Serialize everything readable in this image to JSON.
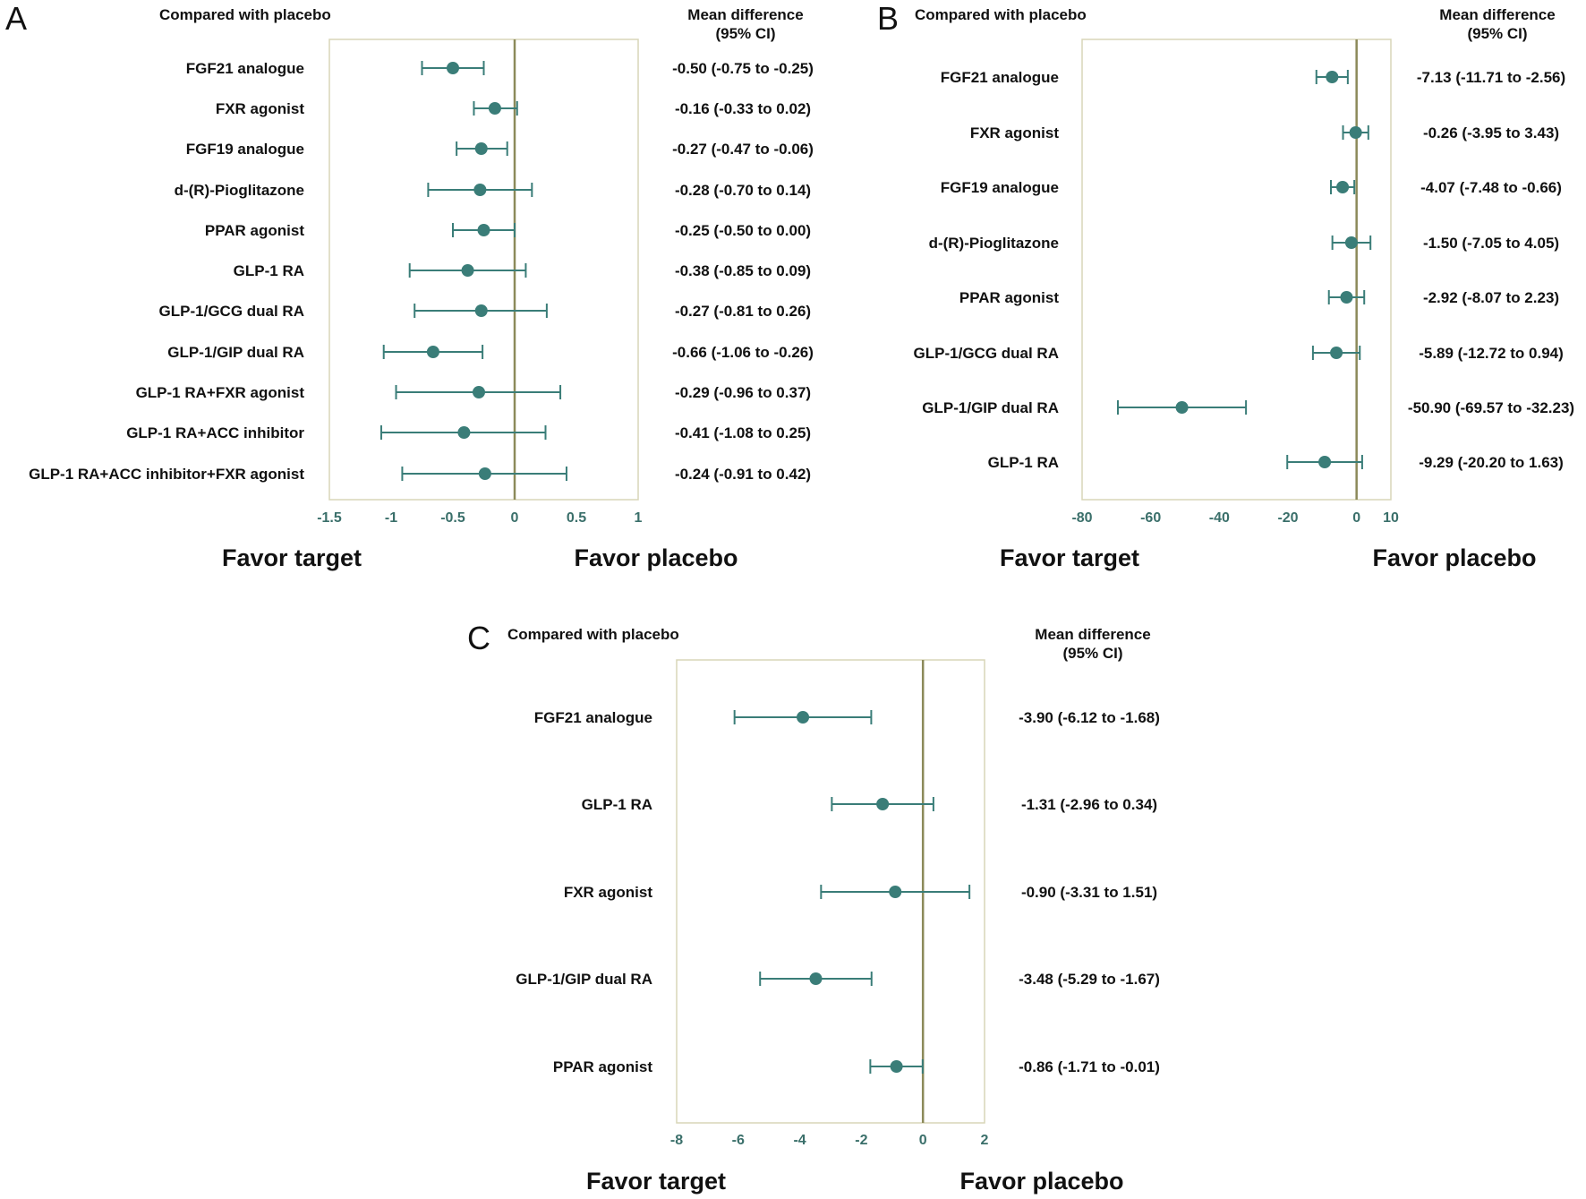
{
  "chart_data": [
    {
      "type": "forest",
      "panel_label": "A",
      "column_left_header": "Compared with placebo",
      "column_right_header_line1": "Mean difference",
      "column_right_header_line2": "(95% CI)",
      "favor_left": "Favor target",
      "favor_right": "Favor placebo",
      "xlim": [
        -1.5,
        1
      ],
      "xticks": [
        "-1.5",
        "-1",
        "-0.5",
        "0",
        "0.5",
        "1"
      ],
      "xtick_values": [
        -1.5,
        -1,
        -0.5,
        0,
        0.5,
        1
      ],
      "reference_line": 0,
      "rows": [
        {
          "label": "FGF21 analogue",
          "mean": -0.5,
          "lower": -0.75,
          "upper": -0.25,
          "text": "-0.50 (-0.75 to -0.25)"
        },
        {
          "label": "FXR agonist",
          "mean": -0.16,
          "lower": -0.33,
          "upper": 0.02,
          "text": "-0.16 (-0.33 to 0.02)"
        },
        {
          "label": "FGF19 analogue",
          "mean": -0.27,
          "lower": -0.47,
          "upper": -0.06,
          "text": "-0.27 (-0.47 to -0.06)"
        },
        {
          "label": "d-(R)-Pioglitazone",
          "mean": -0.28,
          "lower": -0.7,
          "upper": 0.14,
          "text": "-0.28 (-0.70 to 0.14)"
        },
        {
          "label": "PPAR agonist",
          "mean": -0.25,
          "lower": -0.5,
          "upper": 0.0,
          "text": "-0.25 (-0.50 to 0.00)"
        },
        {
          "label": "GLP-1 RA",
          "mean": -0.38,
          "lower": -0.85,
          "upper": 0.09,
          "text": "-0.38 (-0.85 to 0.09)"
        },
        {
          "label": "GLP-1/GCG dual RA",
          "mean": -0.27,
          "lower": -0.81,
          "upper": 0.26,
          "text": "-0.27 (-0.81 to 0.26)"
        },
        {
          "label": "GLP-1/GIP dual RA",
          "mean": -0.66,
          "lower": -1.06,
          "upper": -0.26,
          "text": "-0.66 (-1.06 to -0.26)"
        },
        {
          "label": "GLP-1 RA+FXR agonist",
          "mean": -0.29,
          "lower": -0.96,
          "upper": 0.37,
          "text": "-0.29 (-0.96 to 0.37)"
        },
        {
          "label": "GLP-1 RA+ACC inhibitor",
          "mean": -0.41,
          "lower": -1.08,
          "upper": 0.25,
          "text": "-0.41 (-1.08 to 0.25)"
        },
        {
          "label": "GLP-1 RA+ACC inhibitor+FXR agonist",
          "mean": -0.24,
          "lower": -0.91,
          "upper": 0.42,
          "text": "-0.24 (-0.91 to 0.42)"
        }
      ]
    },
    {
      "type": "forest",
      "panel_label": "B",
      "column_left_header": "Compared with placebo",
      "column_right_header_line1": "Mean difference",
      "column_right_header_line2": "(95% CI)",
      "favor_left": "Favor target",
      "favor_right": "Favor placebo",
      "xlim": [
        -80,
        10
      ],
      "xticks": [
        "-80",
        "-60",
        "-40",
        "-20",
        "0",
        "10"
      ],
      "xtick_values": [
        -80,
        -60,
        -40,
        -20,
        0,
        10
      ],
      "reference_line": 0,
      "rows": [
        {
          "label": "FGF21 analogue",
          "mean": -7.13,
          "lower": -11.71,
          "upper": -2.56,
          "text": "-7.13 (-11.71 to -2.56)"
        },
        {
          "label": "FXR agonist",
          "mean": -0.26,
          "lower": -3.95,
          "upper": 3.43,
          "text": "-0.26 (-3.95 to 3.43)"
        },
        {
          "label": "FGF19 analogue",
          "mean": -4.07,
          "lower": -7.48,
          "upper": -0.66,
          "text": "-4.07 (-7.48 to -0.66)"
        },
        {
          "label": "d-(R)-Pioglitazone",
          "mean": -1.5,
          "lower": -7.05,
          "upper": 4.05,
          "text": "-1.50 (-7.05 to 4.05)"
        },
        {
          "label": "PPAR agonist",
          "mean": -2.92,
          "lower": -8.07,
          "upper": 2.23,
          "text": "-2.92 (-8.07 to 2.23)"
        },
        {
          "label": "GLP-1/GCG dual RA",
          "mean": -5.89,
          "lower": -12.72,
          "upper": 0.94,
          "text": "-5.89 (-12.72 to 0.94)"
        },
        {
          "label": "GLP-1/GIP dual RA",
          "mean": -50.9,
          "lower": -69.57,
          "upper": -32.23,
          "text": "-50.90 (-69.57 to -32.23)"
        },
        {
          "label": "GLP-1 RA",
          "mean": -9.29,
          "lower": -20.2,
          "upper": 1.63,
          "text": "-9.29 (-20.20 to 1.63)"
        }
      ]
    },
    {
      "type": "forest",
      "panel_label": "C",
      "column_left_header": "Compared with placebo",
      "column_right_header_line1": "Mean difference",
      "column_right_header_line2": "(95% CI)",
      "favor_left": "Favor target",
      "favor_right": "Favor placebo",
      "xlim": [
        -8,
        2
      ],
      "xticks": [
        "-8",
        "-6",
        "-4",
        "-2",
        "0",
        "2"
      ],
      "xtick_values": [
        -8,
        -6,
        -4,
        -2,
        0,
        2
      ],
      "reference_line": 0,
      "rows": [
        {
          "label": "FGF21 analogue",
          "mean": -3.9,
          "lower": -6.12,
          "upper": -1.68,
          "text": "-3.90 (-6.12 to -1.68)"
        },
        {
          "label": "GLP-1 RA",
          "mean": -1.31,
          "lower": -2.96,
          "upper": 0.34,
          "text": "-1.31 (-2.96 to 0.34)"
        },
        {
          "label": "FXR agonist",
          "mean": -0.9,
          "lower": -3.31,
          "upper": 1.51,
          "text": "-0.90 (-3.31 to 1.51)"
        },
        {
          "label": "GLP-1/GIP dual RA",
          "mean": -3.48,
          "lower": -5.29,
          "upper": -1.67,
          "text": "-3.48 (-5.29 to -1.67)"
        },
        {
          "label": "PPAR agonist",
          "mean": -0.86,
          "lower": -1.71,
          "upper": -0.01,
          "text": "-0.86 (-1.71 to -0.01)"
        }
      ]
    }
  ],
  "colors": {
    "point": "#3a7d78",
    "ci_line": "#3a7d78",
    "reference_line": "#8c8a5a",
    "frame": "#d8d6b8",
    "tick_text": "#3a6f6a",
    "text": "#111111"
  }
}
